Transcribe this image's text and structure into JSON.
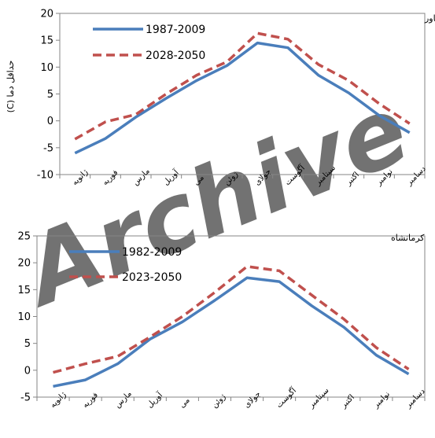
{
  "chart_data": [
    {
      "type": "line",
      "title": "کنگاور",
      "ylabel": "حداقل دما (C)",
      "xlabel": "",
      "ylim": [
        -10,
        20
      ],
      "yticks": [
        -10,
        -5,
        0,
        5,
        10,
        15,
        20
      ],
      "grid": false,
      "legend_position": "top-left",
      "categories": [
        "ژانویه",
        "فوریه",
        "مارس",
        "آوریل",
        "می",
        "ژوئن",
        "جولای",
        "آگوست",
        "سپتامبر",
        "اکتبر",
        "نوامبر",
        "دسامبر"
      ],
      "series": [
        {
          "name": "1987-2009",
          "style": "solid",
          "color": "#4a7ebb",
          "values": [
            -6.0,
            -3.3,
            0.7,
            4.2,
            7.5,
            10.3,
            14.5,
            13.6,
            8.5,
            5.2,
            1.0,
            -2.2
          ]
        },
        {
          "name": "2028-2050",
          "style": "dashed",
          "color": "#c0504d",
          "values": [
            -3.4,
            -0.2,
            1.2,
            5.0,
            8.5,
            11.0,
            16.3,
            15.2,
            10.5,
            7.5,
            3.2,
            -0.5
          ]
        }
      ]
    },
    {
      "type": "line",
      "title": "کرمانشاه",
      "ylabel": "",
      "xlabel": "",
      "ylim": [
        -5,
        25
      ],
      "yticks": [
        -5,
        0,
        5,
        10,
        15,
        20,
        25
      ],
      "grid": false,
      "legend_position": "top-left",
      "categories": [
        "ژانویه",
        "فوریه",
        "مارس",
        "آوریل",
        "می",
        "ژوئن",
        "جولای",
        "آگوست",
        "سپتامبر",
        "اکتبر",
        "نوامبر",
        "دسامبر"
      ],
      "series": [
        {
          "name": "1982-2009",
          "style": "solid",
          "color": "#4a7ebb",
          "values": [
            -3.0,
            -1.8,
            1.2,
            5.8,
            9.0,
            13.0,
            17.2,
            16.5,
            12.0,
            8.0,
            2.8,
            -0.7
          ]
        },
        {
          "name": "2023-2050",
          "style": "dashed",
          "color": "#c0504d",
          "values": [
            -0.4,
            1.2,
            2.6,
            6.2,
            10.0,
            14.5,
            19.3,
            18.5,
            14.0,
            9.5,
            4.2,
            0.2
          ]
        }
      ]
    }
  ],
  "watermark": "Archive of SID"
}
